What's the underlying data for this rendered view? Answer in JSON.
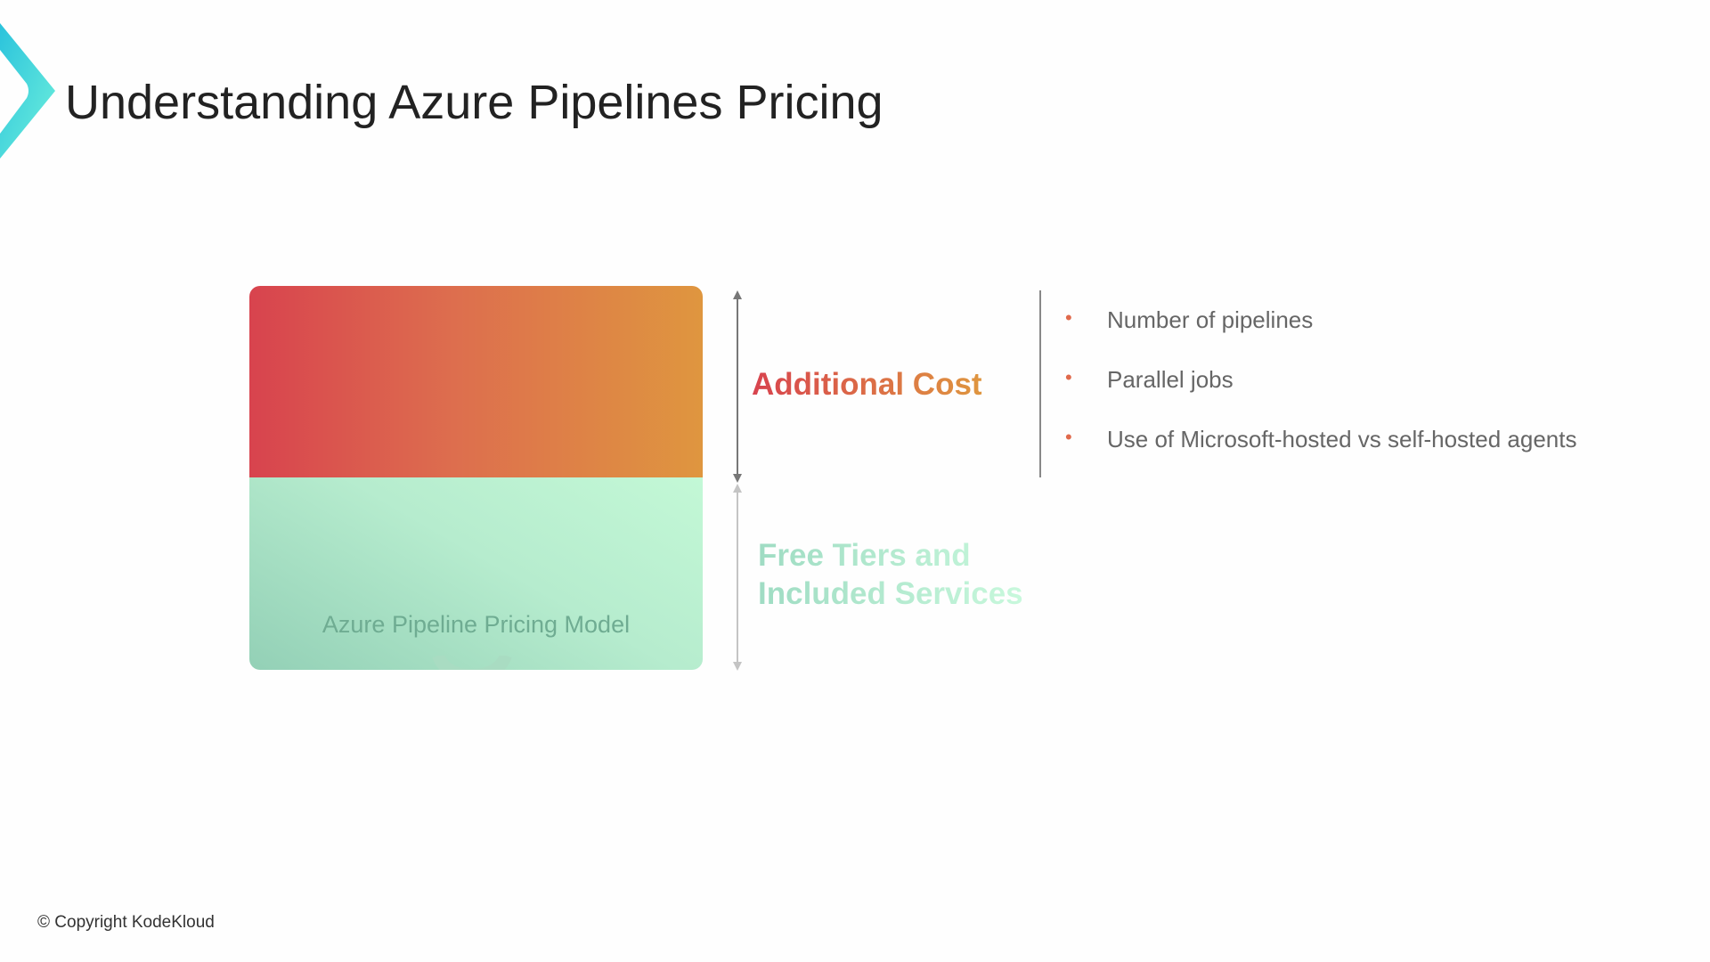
{
  "header": {
    "title": "Understanding Azure Pipelines Pricing",
    "logo_icon": "kodekloud-chevron-icon"
  },
  "diagram": {
    "box_label": "Azure Pipeline Pricing Model",
    "top_label": "Additional Cost",
    "bottom_label_line1": "Free Tiers and",
    "bottom_label_line2": "Included Services",
    "colors": {
      "cost_start": "#d8434e",
      "cost_end": "#df963f",
      "free_start": "#93d0b6",
      "free_end": "#c3f8d6"
    }
  },
  "factors": [
    {
      "label": "Number of pipelines"
    },
    {
      "label": "Parallel jobs"
    },
    {
      "label": "Use of Microsoft-hosted vs self-hosted agents"
    }
  ],
  "footer": {
    "copyright": "© Copyright KodeKloud"
  }
}
